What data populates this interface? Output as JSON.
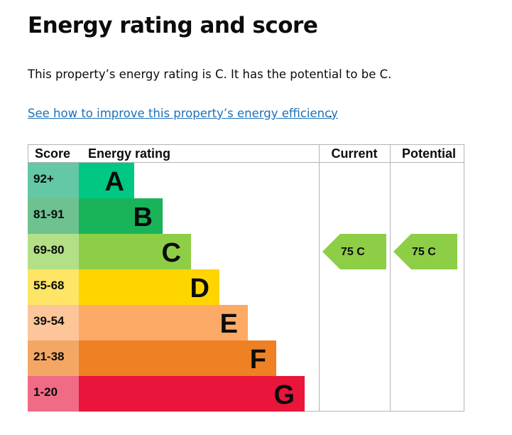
{
  "page": {
    "title": "Energy rating and score",
    "summary": "This property’s energy rating is C. It has the potential to be C.",
    "link_text": "See how to improve this property’s energy efficiency",
    "link_suffix": "."
  },
  "chart_data": {
    "type": "bar",
    "columns": [
      "Score",
      "Energy rating",
      "Current",
      "Potential"
    ],
    "bands": [
      {
        "letter": "A",
        "score": "92+",
        "color": "#00c781",
        "score_bg": "#64c7a5"
      },
      {
        "letter": "B",
        "score": "81-91",
        "color": "#19b459",
        "score_bg": "#6dc28f"
      },
      {
        "letter": "C",
        "score": "69-80",
        "color": "#8dce46",
        "score_bg": "#b3df86"
      },
      {
        "letter": "D",
        "score": "55-68",
        "color": "#ffd500",
        "score_bg": "#ffe565"
      },
      {
        "letter": "E",
        "score": "39-54",
        "color": "#fcaa65",
        "score_bg": "#fdc69a"
      },
      {
        "letter": "F",
        "score": "21-38",
        "color": "#ef8023",
        "score_bg": "#f4a765"
      },
      {
        "letter": "G",
        "score": "1-20",
        "color": "#e9153b",
        "score_bg": "#f06b85"
      }
    ],
    "current": {
      "score": 75,
      "letter": "C",
      "label": "75  C",
      "color": "#8dce46"
    },
    "potential": {
      "score": 75,
      "letter": "C",
      "label": "75  C",
      "color": "#8dce46"
    },
    "grid_color": "#b1b4b6"
  }
}
